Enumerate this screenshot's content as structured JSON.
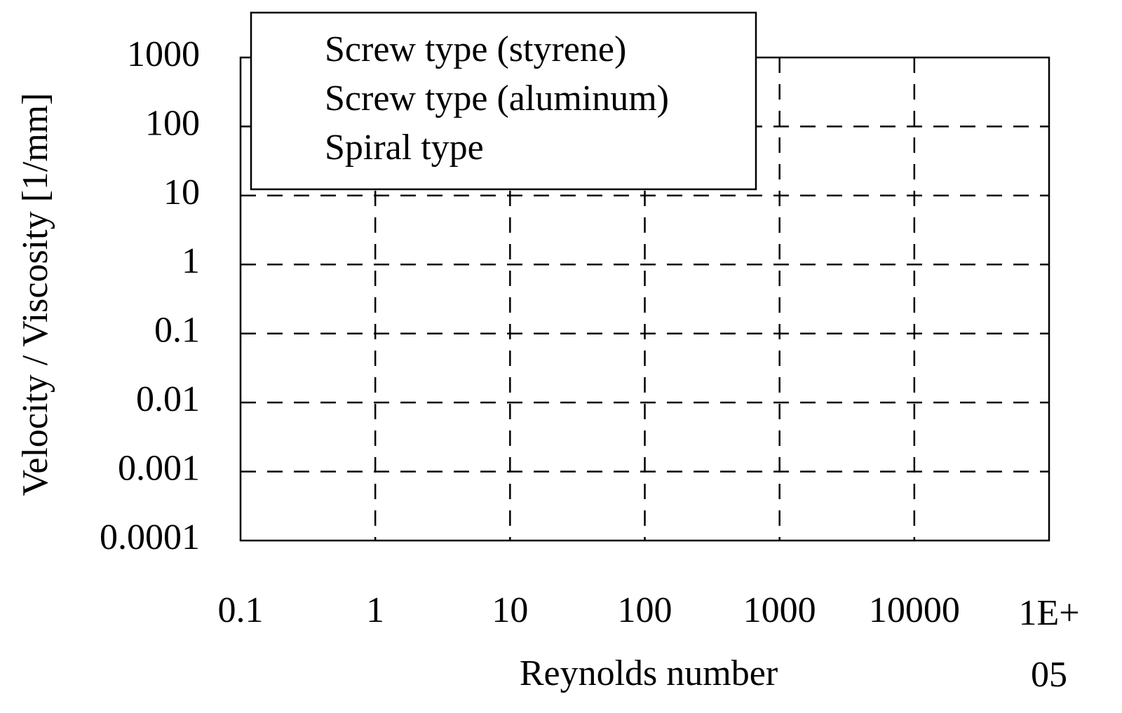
{
  "chart_data": {
    "type": "line",
    "xlabel": "Reynolds number",
    "ylabel": "Velocity / Viscosity [1/mm]",
    "x": [],
    "series": [
      {
        "name": "Screw type (styrene)",
        "values": []
      },
      {
        "name": "Screw type (aluminum)",
        "values": []
      },
      {
        "name": "Spiral type",
        "values": []
      }
    ],
    "xscale": "log",
    "yscale": "log",
    "xlim": [
      0.1,
      100000
    ],
    "ylim": [
      0.0001,
      1000
    ],
    "xticks": [
      0.1,
      1,
      10,
      100,
      1000,
      10000,
      {
        "value": 100000,
        "label": "1E+05"
      }
    ],
    "yticks": [
      0.0001,
      0.001,
      0.01,
      0.1,
      1,
      10,
      100,
      1000
    ],
    "grid": true,
    "legend": "upper left"
  }
}
